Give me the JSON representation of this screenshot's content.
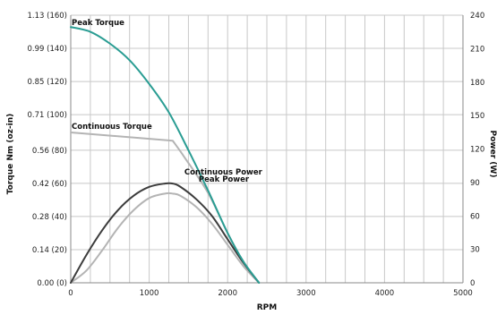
{
  "chart_data": {
    "type": "line",
    "xlabel": "RPM",
    "ylabel_left": "Torque Nm (oz-in)",
    "ylabel_right": "Power (W)",
    "x_range": [
      0,
      5000
    ],
    "x_ticks": [
      0,
      1000,
      2000,
      3000,
      4000,
      5000
    ],
    "x_tick_labels": [
      "0",
      "1000",
      "2000",
      "3000",
      "4000",
      "5000"
    ],
    "y_left_range": [
      0,
      1.13
    ],
    "y_left_ticks": [
      0,
      0.14,
      0.28,
      0.42,
      0.56,
      0.71,
      0.85,
      0.99,
      1.13
    ],
    "y_left_tick_labels": [
      "0.00 (0)",
      "0.14 (20)",
      "0.28 (40)",
      "0.42 (60)",
      "0.56 (80)",
      "0.71 (100)",
      "0.85 (120)",
      "0.99 (140)",
      "1.13 (160)"
    ],
    "y_right_range": [
      0,
      240
    ],
    "y_right_ticks": [
      0,
      30,
      60,
      90,
      120,
      150,
      180,
      210,
      240
    ],
    "y_right_tick_labels": [
      "0",
      "30",
      "60",
      "90",
      "120",
      "150",
      "180",
      "210",
      "240"
    ],
    "grid": true,
    "colors": {
      "peak_torque": "#2a9d93",
      "continuous_torque": "#b4b4b4",
      "continuous_power": "#3c3c3c",
      "peak_power": "#b4b4b4",
      "grid": "#c8c8c8",
      "axis": "#888888"
    },
    "series": [
      {
        "name": "Peak Torque",
        "axis": "left",
        "color_key": "peak_torque",
        "x": [
          0,
          250,
          500,
          750,
          1000,
          1250,
          1500,
          1750,
          2000,
          2200,
          2400
        ],
        "y": [
          1.08,
          1.06,
          1.01,
          0.94,
          0.84,
          0.72,
          0.56,
          0.39,
          0.21,
          0.09,
          0.0
        ]
      },
      {
        "name": "Continuous Torque",
        "axis": "left",
        "color_key": "continuous_torque",
        "x": [
          0,
          1300,
          1450,
          1750,
          2000,
          2200,
          2400
        ],
        "y": [
          0.635,
          0.6,
          0.53,
          0.38,
          0.21,
          0.09,
          0.0
        ]
      },
      {
        "name": "Continuous Power",
        "axis": "right",
        "color_key": "continuous_power",
        "x": [
          0,
          200,
          400,
          600,
          800,
          1000,
          1200,
          1300,
          1400,
          1600,
          1800,
          2000,
          2200,
          2400
        ],
        "y": [
          0,
          25,
          47,
          65,
          78,
          86,
          89,
          89,
          86,
          75,
          60,
          39,
          18,
          0
        ]
      },
      {
        "name": "Peak Power",
        "axis": "right",
        "color_key": "peak_power",
        "x": [
          0,
          200,
          400,
          600,
          800,
          1000,
          1200,
          1300,
          1400,
          1600,
          1800,
          2000,
          2200,
          2400
        ],
        "y": [
          0,
          11,
          29,
          49,
          65,
          76,
          80,
          80,
          78,
          68,
          53,
          34,
          15,
          0
        ]
      }
    ],
    "annotations": [
      {
        "text": "Peak Torque",
        "x": 0,
        "y": 1.08,
        "axis": "left"
      },
      {
        "text": "Continuous Torque",
        "x": 0,
        "y": 0.635,
        "axis": "left"
      },
      {
        "text": "Continuous Power",
        "x": 1300,
        "y": 0.42,
        "axis": "left"
      },
      {
        "text": "Peak Power",
        "x": 1300,
        "y": 0.42,
        "axis": "left"
      }
    ]
  }
}
